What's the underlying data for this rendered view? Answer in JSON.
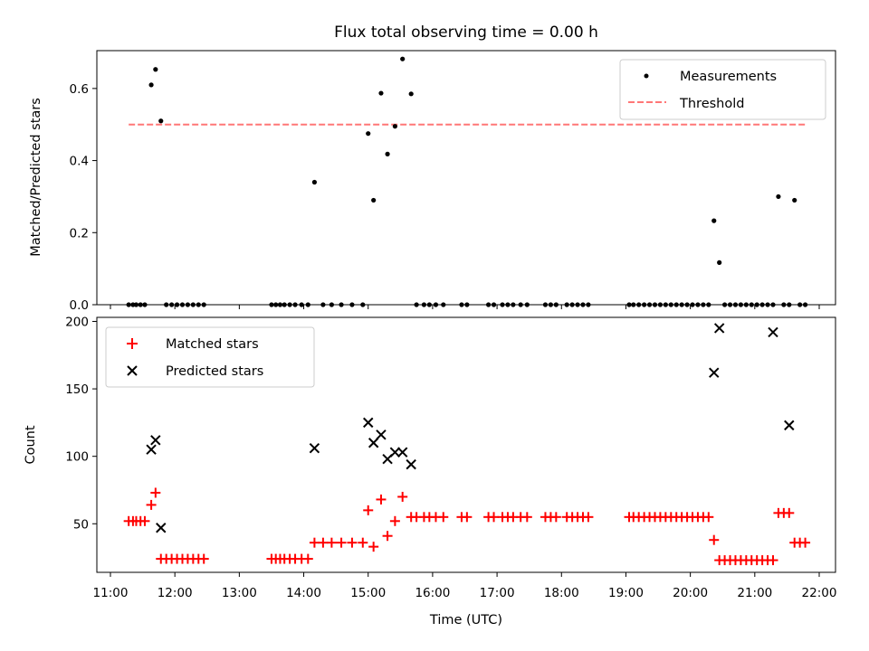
{
  "chart_data": [
    {
      "type": "scatter",
      "title": "Flux total observing time = 0.00 h",
      "xlabel": "",
      "ylabel": "Matched/Predicted stars",
      "xlim": [
        "11:00",
        "22:00"
      ],
      "ylim": [
        0,
        0.7
      ],
      "yticks": [
        0.0,
        0.2,
        0.4,
        0.6
      ],
      "legend": "top-right",
      "series": [
        {
          "name": "Measurements",
          "kind": "points",
          "color": "#000000",
          "x": [
            "11:17",
            "11:21",
            "11:24",
            "11:28",
            "11:32",
            "11:38",
            "11:42",
            "11:47",
            "11:52",
            "11:57",
            "12:02",
            "12:07",
            "12:12",
            "12:17",
            "12:22",
            "12:27",
            "13:30",
            "13:34",
            "13:38",
            "13:42",
            "13:47",
            "13:52",
            "13:58",
            "14:04",
            "14:10",
            "14:18",
            "14:26",
            "14:35",
            "14:45",
            "14:55",
            "15:00",
            "15:05",
            "15:12",
            "15:18",
            "15:25",
            "15:32",
            "15:40",
            "15:45",
            "15:52",
            "15:57",
            "16:03",
            "16:10",
            "16:27",
            "16:32",
            "16:52",
            "16:57",
            "17:05",
            "17:10",
            "17:15",
            "17:22",
            "17:28",
            "17:45",
            "17:50",
            "17:55",
            "18:05",
            "18:10",
            "18:15",
            "18:20",
            "18:25",
            "19:03",
            "19:07",
            "19:12",
            "19:17",
            "19:22",
            "19:27",
            "19:32",
            "19:37",
            "19:42",
            "19:47",
            "19:52",
            "19:57",
            "20:02",
            "20:07",
            "20:12",
            "20:17",
            "20:22",
            "20:27",
            "20:32",
            "20:37",
            "20:42",
            "20:47",
            "20:52",
            "20:57",
            "21:02",
            "21:07",
            "21:12",
            "21:17",
            "21:22",
            "21:27",
            "21:32",
            "21:37",
            "21:42",
            "21:47"
          ],
          "y": [
            0,
            0,
            0,
            0,
            0,
            0.61,
            0.653,
            0.51,
            0,
            0,
            0,
            0,
            0,
            0,
            0,
            0,
            0,
            0,
            0,
            0,
            0,
            0,
            0,
            0,
            0.34,
            0,
            0,
            0,
            0,
            0,
            0.475,
            0.29,
            0.587,
            0.418,
            0.495,
            0.682,
            0.585,
            0,
            0,
            0,
            0,
            0,
            0,
            0,
            0,
            0,
            0,
            0,
            0,
            0,
            0,
            0,
            0,
            0,
            0,
            0,
            0,
            0,
            0,
            0,
            0,
            0,
            0,
            0,
            0,
            0,
            0,
            0,
            0,
            0,
            0,
            0,
            0,
            0,
            0,
            0.233,
            0.117,
            0,
            0,
            0,
            0,
            0,
            0,
            0,
            0,
            0,
            0,
            0.3,
            0,
            0,
            0.29,
            0,
            0
          ]
        },
        {
          "name": "Threshold",
          "kind": "dashed-line",
          "color": "#ff7777",
          "x": [
            "11:17",
            "21:47"
          ],
          "y": [
            0.5,
            0.5
          ]
        }
      ]
    },
    {
      "type": "scatter",
      "title": "",
      "xlabel": "Time (UTC)",
      "ylabel": "Count",
      "xlim": [
        "11:00",
        "22:00"
      ],
      "xticks": [
        "11:00",
        "12:00",
        "13:00",
        "14:00",
        "15:00",
        "16:00",
        "17:00",
        "18:00",
        "19:00",
        "20:00",
        "21:00",
        "22:00"
      ],
      "ylim": [
        14,
        203
      ],
      "yticks": [
        50,
        100,
        150,
        200
      ],
      "legend": "top-left",
      "series": [
        {
          "name": "Matched stars",
          "marker": "+",
          "color": "#ff0000",
          "x": [
            "11:17",
            "11:21",
            "11:24",
            "11:28",
            "11:32",
            "11:38",
            "11:42",
            "11:47",
            "11:52",
            "11:57",
            "12:02",
            "12:07",
            "12:12",
            "12:17",
            "12:22",
            "12:27",
            "13:30",
            "13:34",
            "13:38",
            "13:42",
            "13:47",
            "13:52",
            "13:58",
            "14:04",
            "14:10",
            "14:18",
            "14:26",
            "14:35",
            "14:45",
            "14:55",
            "15:00",
            "15:05",
            "15:12",
            "15:18",
            "15:25",
            "15:32",
            "15:40",
            "15:45",
            "15:52",
            "15:57",
            "16:03",
            "16:10",
            "16:27",
            "16:32",
            "16:52",
            "16:57",
            "17:05",
            "17:10",
            "17:15",
            "17:22",
            "17:28",
            "17:45",
            "17:50",
            "17:55",
            "18:05",
            "18:10",
            "18:15",
            "18:20",
            "18:25",
            "19:03",
            "19:07",
            "19:12",
            "19:17",
            "19:22",
            "19:27",
            "19:32",
            "19:37",
            "19:42",
            "19:47",
            "19:52",
            "19:57",
            "20:02",
            "20:07",
            "20:12",
            "20:17",
            "20:22",
            "20:27",
            "20:32",
            "20:37",
            "20:42",
            "20:47",
            "20:52",
            "20:57",
            "21:02",
            "21:07",
            "21:12",
            "21:17",
            "21:22",
            "21:27",
            "21:32",
            "21:37",
            "21:42",
            "21:47"
          ],
          "y": [
            52,
            52,
            52,
            52,
            52,
            64,
            73,
            24,
            24,
            24,
            24,
            24,
            24,
            24,
            24,
            24,
            24,
            24,
            24,
            24,
            24,
            24,
            24,
            24,
            36,
            36,
            36,
            36,
            36,
            36,
            60,
            33,
            68,
            41,
            52,
            70,
            55,
            55,
            55,
            55,
            55,
            55,
            55,
            55,
            55,
            55,
            55,
            55,
            55,
            55,
            55,
            55,
            55,
            55,
            55,
            55,
            55,
            55,
            55,
            55,
            55,
            55,
            55,
            55,
            55,
            55,
            55,
            55,
            55,
            55,
            55,
            55,
            55,
            55,
            55,
            38,
            23,
            23,
            23,
            23,
            23,
            23,
            23,
            23,
            23,
            23,
            23,
            58,
            58,
            58,
            36,
            36,
            36
          ]
        },
        {
          "name": "Predicted stars",
          "marker": "x",
          "color": "#000000",
          "x": [
            "11:38",
            "11:42",
            "11:47",
            "14:10",
            "15:00",
            "15:05",
            "15:12",
            "15:18",
            "15:25",
            "15:32",
            "15:40",
            "20:22",
            "20:27",
            "21:17",
            "21:32"
          ],
          "y": [
            105,
            112,
            47,
            106,
            125,
            110,
            116,
            98,
            103,
            103,
            94,
            162,
            195,
            192,
            123
          ]
        }
      ]
    }
  ]
}
